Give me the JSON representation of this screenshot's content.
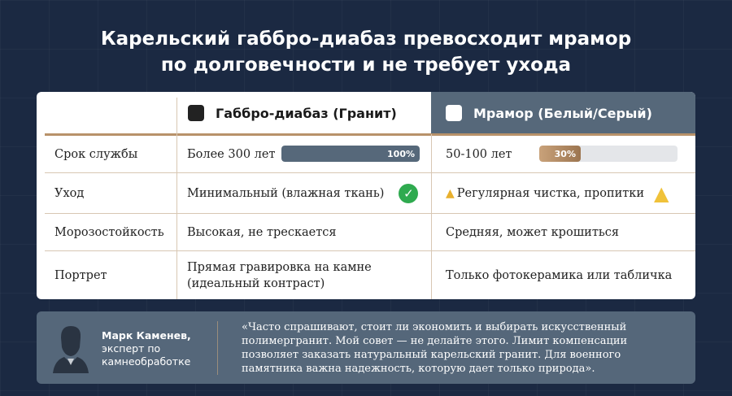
{
  "title": {
    "line1": "Карельский габбро-диабаз превосходит мрамор",
    "line2": "по долговечности и не требует ухода"
  },
  "columns": {
    "granite": "Габбро-диабаз (Гранит)",
    "marble": "Мрамор (Белый/Серый)"
  },
  "colors": {
    "background": "#1b2942",
    "granite_bar": "#56687a",
    "marble_bar": "#b8926a",
    "accent_gold": "#b8926a",
    "check": "#2faa4f",
    "warning": "#f0c23a"
  },
  "rows": [
    {
      "label": "Срок службы",
      "granite": "Более 300 лет",
      "marble": "50-100 лет",
      "granite_pct": 100,
      "granite_pct_label": "100%",
      "marble_pct": 30,
      "marble_pct_label": "30%"
    },
    {
      "label": "Уход",
      "granite": "Минимальный (влажная ткань)",
      "marble": "Регулярная чистка, пропитки",
      "granite_icon": "check-circle-icon",
      "marble_icon": "warning-icon"
    },
    {
      "label": "Морозостойкость",
      "granite": "Высокая, не трескается",
      "marble": "Средняя, может крошиться"
    },
    {
      "label": "Портрет",
      "granite": "Прямая гравировка на камне (идеальный контраст)",
      "marble": "Только фотокерамика или табличка"
    }
  ],
  "quote": {
    "name": "Марк Каменев,",
    "role1": "эксперт по",
    "role2": "камнеобработке",
    "text": "«Часто спрашивают, стоит ли экономить и выбирать искусственный полимергранит. Мой совет — не делайте этого. Лимит компенсации позволяет заказать натуральный карельский гранит. Для военного памятника важна надежность, которую дает только природа»."
  }
}
